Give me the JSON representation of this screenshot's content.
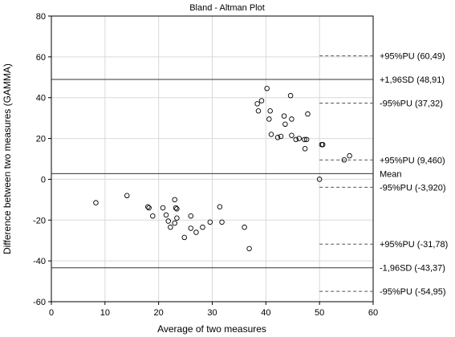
{
  "chart_data": {
    "type": "scatter",
    "title": "Bland - Altman Plot",
    "xlabel": "Average of two measures",
    "ylabel": "Difference between two measures (GAMMA)",
    "xlim": [
      0,
      60
    ],
    "ylim": [
      -60,
      80
    ],
    "xticks": [
      "0",
      "10",
      "20",
      "30",
      "40",
      "50",
      "60"
    ],
    "yticks": [
      "-60",
      "-40",
      "-20",
      "0",
      "20",
      "40",
      "60",
      "80"
    ],
    "grid": true,
    "points": [
      {
        "x": 8.3,
        "y": -11.5
      },
      {
        "x": 14.1,
        "y": -8.0
      },
      {
        "x": 18.0,
        "y": -13.5
      },
      {
        "x": 18.2,
        "y": -14.0
      },
      {
        "x": 18.9,
        "y": -18.0
      },
      {
        "x": 20.8,
        "y": -14.0
      },
      {
        "x": 21.4,
        "y": -17.5
      },
      {
        "x": 21.8,
        "y": -20.5
      },
      {
        "x": 22.2,
        "y": -23.5
      },
      {
        "x": 23.0,
        "y": -10.0
      },
      {
        "x": 23.2,
        "y": -14.0
      },
      {
        "x": 23.4,
        "y": -14.5
      },
      {
        "x": 23.4,
        "y": -19.0
      },
      {
        "x": 23.0,
        "y": -21.5
      },
      {
        "x": 24.8,
        "y": -28.5
      },
      {
        "x": 26.0,
        "y": -18.0
      },
      {
        "x": 26.0,
        "y": -24.0
      },
      {
        "x": 27.0,
        "y": -26.0
      },
      {
        "x": 28.2,
        "y": -23.5
      },
      {
        "x": 29.6,
        "y": -21.0
      },
      {
        "x": 31.4,
        "y": -13.5
      },
      {
        "x": 31.8,
        "y": -21.0
      },
      {
        "x": 36.0,
        "y": -23.5
      },
      {
        "x": 36.9,
        "y": -34.0
      },
      {
        "x": 38.4,
        "y": 37.0
      },
      {
        "x": 38.6,
        "y": 33.5
      },
      {
        "x": 39.2,
        "y": 38.5
      },
      {
        "x": 40.2,
        "y": 44.5
      },
      {
        "x": 40.6,
        "y": 29.5
      },
      {
        "x": 40.8,
        "y": 33.5
      },
      {
        "x": 41.0,
        "y": 22.0
      },
      {
        "x": 42.2,
        "y": 20.5
      },
      {
        "x": 42.8,
        "y": 21.0
      },
      {
        "x": 43.4,
        "y": 31.0
      },
      {
        "x": 43.6,
        "y": 27.0
      },
      {
        "x": 44.6,
        "y": 41.0
      },
      {
        "x": 44.8,
        "y": 29.5
      },
      {
        "x": 44.8,
        "y": 21.5
      },
      {
        "x": 45.6,
        "y": 19.5
      },
      {
        "x": 46.2,
        "y": 20.0
      },
      {
        "x": 47.2,
        "y": 19.5
      },
      {
        "x": 47.3,
        "y": 15.0
      },
      {
        "x": 47.6,
        "y": 19.5
      },
      {
        "x": 47.8,
        "y": 32.0
      },
      {
        "x": 50.0,
        "y": 0.0
      },
      {
        "x": 50.4,
        "y": 17.0
      },
      {
        "x": 50.6,
        "y": 17.0
      },
      {
        "x": 54.6,
        "y": 9.5
      },
      {
        "x": 55.6,
        "y": 11.5
      }
    ],
    "reference_lines": [
      {
        "label": "+1,96SD (48,91)",
        "y": 48.91,
        "style": "solid"
      },
      {
        "label": "Mean",
        "y": 2.75,
        "style": "solid"
      },
      {
        "label": "-1,96SD (-43,37)",
        "y": -43.37,
        "style": "solid"
      }
    ],
    "limit_lines": [
      {
        "label": "+95%PU (60,49)",
        "y": 60.49,
        "style": "dashed",
        "x_from": 50
      },
      {
        "label": "-95%PU (37,32)",
        "y": 37.32,
        "style": "dashed",
        "x_from": 50
      },
      {
        "label": "+95%PU (9,460)",
        "y": 9.46,
        "style": "dashed",
        "x_from": 50
      },
      {
        "label": "-95%PU (-3,920)",
        "y": -3.92,
        "style": "dashed",
        "x_from": 50
      },
      {
        "label": "+95%PU (-31,78)",
        "y": -31.78,
        "style": "dashed",
        "x_from": 50
      },
      {
        "label": "-95%PU (-54,95)",
        "y": -54.95,
        "style": "dashed",
        "x_from": 50
      }
    ]
  }
}
